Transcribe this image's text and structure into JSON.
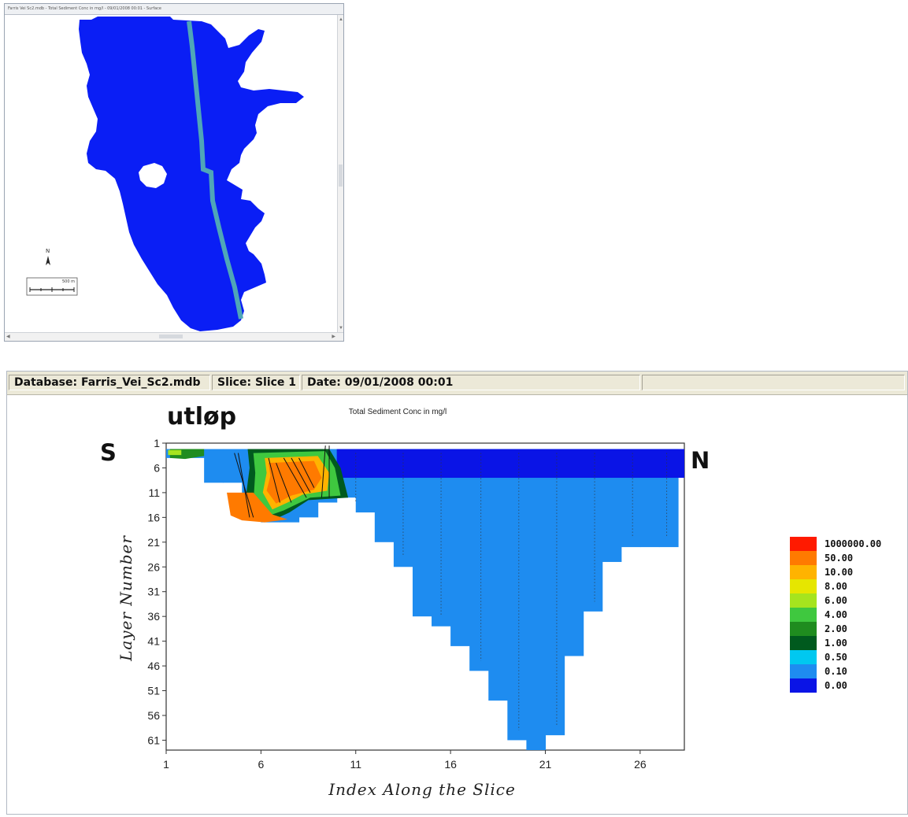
{
  "map_window": {
    "title": "Farris Vei Sc2.mdb - Total Sediment Conc in mg/l - 09/01/2008 00:01 - Surface",
    "north_arrow_icon": "north-arrow-icon",
    "scale_label": "500 m",
    "colors": {
      "water": "#0a1ef5",
      "slice_line": "#4fa6b8"
    }
  },
  "info_bar": {
    "database": "Database: Farris_Vei_Sc2.mdb",
    "slice": "Slice: Slice 1",
    "date": "Date: 09/01/2008 00:01"
  },
  "annotations": {
    "utlop": "utløp",
    "south": "S",
    "north": "N"
  },
  "chart_data": {
    "type": "heatmap",
    "title": "Total Sediment Conc in mg/l",
    "xlabel": "Index Along the Slice",
    "ylabel": "Layer Number",
    "x_ticks": [
      1,
      6,
      11,
      16,
      21,
      26
    ],
    "y_ticks": [
      1,
      6,
      11,
      16,
      21,
      26,
      31,
      36,
      41,
      46,
      51,
      56,
      61
    ],
    "xlim": [
      1,
      28
    ],
    "ylim": [
      1,
      63
    ],
    "legend": {
      "placement": "right",
      "levels": [
        "1000000.00",
        "50.00",
        "10.00",
        "8.00",
        "6.00",
        "4.00",
        "2.00",
        "1.00",
        "0.50",
        "0.10",
        "0.00"
      ],
      "colors": [
        "#ff1a00",
        "#ff7a00",
        "#ffb300",
        "#e6e600",
        "#a6e41e",
        "#3fc83f",
        "#1f8c1f",
        "#005a1e",
        "#00c8f0",
        "#1e8cf0",
        "#0a14e6"
      ]
    },
    "columns": [
      {
        "index": 1,
        "bottom_layer": 4
      },
      {
        "index": 2,
        "bottom_layer": 4
      },
      {
        "index": 3,
        "bottom_layer": 9
      },
      {
        "index": 4,
        "bottom_layer": 9
      },
      {
        "index": 5,
        "bottom_layer": 13
      },
      {
        "index": 6,
        "bottom_layer": 17
      },
      {
        "index": 7,
        "bottom_layer": 17
      },
      {
        "index": 8,
        "bottom_layer": 16
      },
      {
        "index": 9,
        "bottom_layer": 13
      },
      {
        "index": 10,
        "bottom_layer": 12
      },
      {
        "index": 11,
        "bottom_layer": 15
      },
      {
        "index": 12,
        "bottom_layer": 21
      },
      {
        "index": 13,
        "bottom_layer": 26
      },
      {
        "index": 14,
        "bottom_layer": 36
      },
      {
        "index": 15,
        "bottom_layer": 38
      },
      {
        "index": 16,
        "bottom_layer": 42
      },
      {
        "index": 17,
        "bottom_layer": 47
      },
      {
        "index": 18,
        "bottom_layer": 53
      },
      {
        "index": 19,
        "bottom_layer": 61
      },
      {
        "index": 20,
        "bottom_layer": 63
      },
      {
        "index": 21,
        "bottom_layer": 60
      },
      {
        "index": 22,
        "bottom_layer": 44
      },
      {
        "index": 23,
        "bottom_layer": 35
      },
      {
        "index": 24,
        "bottom_layer": 25
      },
      {
        "index": 25,
        "bottom_layer": 22
      },
      {
        "index": 26,
        "bottom_layer": 22
      },
      {
        "index": 27,
        "bottom_layer": 22
      }
    ],
    "top_layer_bottom_offshore": 8,
    "plume_range": {
      "x": [
        4,
        10
      ],
      "layers": [
        2,
        16
      ],
      "max_class": "50.00"
    }
  }
}
